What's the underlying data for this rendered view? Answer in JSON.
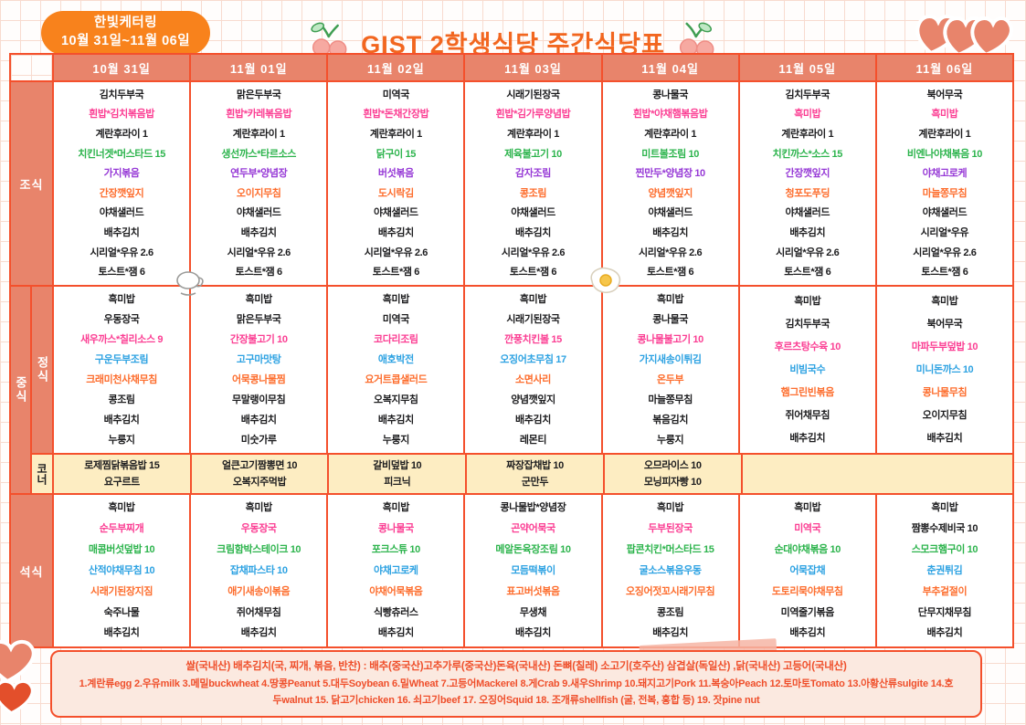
{
  "header": {
    "catering_name": "한빛케터링",
    "date_range": "10월 31일~11월 06일",
    "title": "GIST 2학생식당 주간식당표"
  },
  "days": [
    "10월 31일",
    "11월 01일",
    "11월 02일",
    "11월 03일",
    "11월 04일",
    "11월 05일",
    "11월 06일"
  ],
  "row_labels": {
    "breakfast": "조식",
    "lunch": "중식",
    "lunch_main": "정식",
    "corner": "코너",
    "dinner": "석식"
  },
  "colors": {
    "black": "#1d1d1f",
    "pink": "#fb3e93",
    "green": "#2db44d",
    "purple": "#9639d6",
    "orange": "#fd6d2d",
    "blue": "#2da2e2",
    "accent": "#f4502c",
    "salmon": "#e8846b",
    "corner_bg": "#fdedc2",
    "badge_bg": "#f8821c",
    "title_color": "#f2661f"
  },
  "menu": {
    "breakfast": [
      [
        {
          "t": "김치두부국",
          "c": "black"
        },
        {
          "t": "흰밥*김치볶음밥",
          "c": "pink"
        },
        {
          "t": "계란후라이 1",
          "c": "black"
        },
        {
          "t": "치킨너겟*머스타드 15",
          "c": "green"
        },
        {
          "t": "가지볶음",
          "c": "purple"
        },
        {
          "t": "간장깻잎지",
          "c": "orange"
        },
        {
          "t": "야채샐러드",
          "c": "black"
        },
        {
          "t": "배추김치",
          "c": "black"
        },
        {
          "t": "시리얼*우유 2.6",
          "c": "black"
        },
        {
          "t": "토스트*잼 6",
          "c": "black"
        }
      ],
      [
        {
          "t": "맑은두부국",
          "c": "black"
        },
        {
          "t": "흰밥*카레볶음밥",
          "c": "pink"
        },
        {
          "t": "계란후라이 1",
          "c": "black"
        },
        {
          "t": "생선까스*타르소스",
          "c": "green"
        },
        {
          "t": "연두부*양념장",
          "c": "purple"
        },
        {
          "t": "오이지무침",
          "c": "orange"
        },
        {
          "t": "야채샐러드",
          "c": "black"
        },
        {
          "t": "배추김치",
          "c": "black"
        },
        {
          "t": "시리얼*우유 2.6",
          "c": "black"
        },
        {
          "t": "토스트*잼 6",
          "c": "black"
        }
      ],
      [
        {
          "t": "미역국",
          "c": "black"
        },
        {
          "t": "흰밥*돈채간장밥",
          "c": "pink"
        },
        {
          "t": "계란후라이 1",
          "c": "black"
        },
        {
          "t": "닭구이 15",
          "c": "green"
        },
        {
          "t": "버섯볶음",
          "c": "purple"
        },
        {
          "t": "도시락김",
          "c": "orange"
        },
        {
          "t": "야채샐러드",
          "c": "black"
        },
        {
          "t": "배추김치",
          "c": "black"
        },
        {
          "t": "시리얼*우유 2.6",
          "c": "black"
        },
        {
          "t": "토스트*잼 6",
          "c": "black"
        }
      ],
      [
        {
          "t": "시래기된장국",
          "c": "black"
        },
        {
          "t": "흰밥*김가루양념밥",
          "c": "pink"
        },
        {
          "t": "계란후라이 1",
          "c": "black"
        },
        {
          "t": "제육불고기 10",
          "c": "green"
        },
        {
          "t": "감자조림",
          "c": "purple"
        },
        {
          "t": "콩조림",
          "c": "orange"
        },
        {
          "t": "야채샐러드",
          "c": "black"
        },
        {
          "t": "배추김치",
          "c": "black"
        },
        {
          "t": "시리얼*우유 2.6",
          "c": "black"
        },
        {
          "t": "토스트*잼 6",
          "c": "black"
        }
      ],
      [
        {
          "t": "콩나물국",
          "c": "black"
        },
        {
          "t": "흰밥*야채햄볶음밥",
          "c": "pink"
        },
        {
          "t": "계란후라이 1",
          "c": "black"
        },
        {
          "t": "미트볼조림 10",
          "c": "green"
        },
        {
          "t": "찐만두*양념장 10",
          "c": "purple"
        },
        {
          "t": "양념깻잎지",
          "c": "orange"
        },
        {
          "t": "야채샐러드",
          "c": "black"
        },
        {
          "t": "배추김치",
          "c": "black"
        },
        {
          "t": "시리얼*우유 2.6",
          "c": "black"
        },
        {
          "t": "토스트*잼 6",
          "c": "black"
        }
      ],
      [
        {
          "t": "김치두부국",
          "c": "black"
        },
        {
          "t": "흑미밥",
          "c": "pink"
        },
        {
          "t": "계란후라이 1",
          "c": "black"
        },
        {
          "t": "치킨까스*소스 15",
          "c": "green"
        },
        {
          "t": "간장깻잎지",
          "c": "purple"
        },
        {
          "t": "청포도푸딩",
          "c": "orange"
        },
        {
          "t": "야채샐러드",
          "c": "black"
        },
        {
          "t": "배추김치",
          "c": "black"
        },
        {
          "t": "시리얼*우유 2.6",
          "c": "black"
        },
        {
          "t": "토스트*잼 6",
          "c": "black"
        }
      ],
      [
        {
          "t": "북어무국",
          "c": "black"
        },
        {
          "t": "흑미밥",
          "c": "pink"
        },
        {
          "t": "계란후라이 1",
          "c": "black"
        },
        {
          "t": "비엔나야채볶음 10",
          "c": "green"
        },
        {
          "t": "야채고로케",
          "c": "purple"
        },
        {
          "t": "마늘쫑무침",
          "c": "orange"
        },
        {
          "t": "야채샐러드",
          "c": "black"
        },
        {
          "t": "시리얼*우유",
          "c": "black"
        },
        {
          "t": "시리얼*우유 2.6",
          "c": "black"
        },
        {
          "t": "토스트*잼 6",
          "c": "black"
        }
      ]
    ],
    "lunch": [
      [
        {
          "t": "흑미밥",
          "c": "black"
        },
        {
          "t": "우동장국",
          "c": "black"
        },
        {
          "t": "새우까스*칠리소스 9",
          "c": "pink"
        },
        {
          "t": "구운두부조림",
          "c": "blue"
        },
        {
          "t": "크래미천사채무침",
          "c": "orange"
        },
        {
          "t": "콩조림",
          "c": "black"
        },
        {
          "t": "배추김치",
          "c": "black"
        },
        {
          "t": "누룽지",
          "c": "black"
        }
      ],
      [
        {
          "t": "흑미밥",
          "c": "black"
        },
        {
          "t": "맑은두부국",
          "c": "black"
        },
        {
          "t": "간장불고기 10",
          "c": "pink"
        },
        {
          "t": "고구마맛탕",
          "c": "blue"
        },
        {
          "t": "어묵콩나물찜",
          "c": "orange"
        },
        {
          "t": "무말랭이무침",
          "c": "black"
        },
        {
          "t": "배추김치",
          "c": "black"
        },
        {
          "t": "미숫가루",
          "c": "black"
        }
      ],
      [
        {
          "t": "흑미밥",
          "c": "black"
        },
        {
          "t": "미역국",
          "c": "black"
        },
        {
          "t": "코다리조림",
          "c": "pink"
        },
        {
          "t": "애호박전",
          "c": "blue"
        },
        {
          "t": "요거트콥샐러드",
          "c": "orange"
        },
        {
          "t": "오복지무침",
          "c": "black"
        },
        {
          "t": "배추김치",
          "c": "black"
        },
        {
          "t": "누룽지",
          "c": "black"
        }
      ],
      [
        {
          "t": "흑미밥",
          "c": "black"
        },
        {
          "t": "시래기된장국",
          "c": "black"
        },
        {
          "t": "깐풍치킨볼 15",
          "c": "pink"
        },
        {
          "t": "오징어초무침 17",
          "c": "blue"
        },
        {
          "t": "소면사리",
          "c": "orange"
        },
        {
          "t": "양념깻잎지",
          "c": "black"
        },
        {
          "t": "배추김치",
          "c": "black"
        },
        {
          "t": "레몬티",
          "c": "black"
        }
      ],
      [
        {
          "t": "흑미밥",
          "c": "black"
        },
        {
          "t": "콩나물국",
          "c": "black"
        },
        {
          "t": "콩나물불고기 10",
          "c": "pink"
        },
        {
          "t": "가지새송이튀김",
          "c": "blue"
        },
        {
          "t": "온두부",
          "c": "orange"
        },
        {
          "t": "마늘쫑무침",
          "c": "black"
        },
        {
          "t": "볶음김치",
          "c": "black"
        },
        {
          "t": "누룽지",
          "c": "black"
        }
      ],
      [
        {
          "t": "흑미밥",
          "c": "black"
        },
        {
          "t": "김치두부국",
          "c": "black"
        },
        {
          "t": "후르츠탕수육 10",
          "c": "pink"
        },
        {
          "t": "비빔국수",
          "c": "blue"
        },
        {
          "t": "햄그린빈볶음",
          "c": "orange"
        },
        {
          "t": "쥐어채무침",
          "c": "black"
        },
        {
          "t": "배추김치",
          "c": "black"
        }
      ],
      [
        {
          "t": "흑미밥",
          "c": "black"
        },
        {
          "t": "북어무국",
          "c": "black"
        },
        {
          "t": "마파두부덮밥 10",
          "c": "pink"
        },
        {
          "t": "미니돈까스 10",
          "c": "blue"
        },
        {
          "t": "콩나물무침",
          "c": "orange"
        },
        {
          "t": "오이지무침",
          "c": "black"
        },
        {
          "t": "배추김치",
          "c": "black"
        }
      ]
    ],
    "corner": [
      [
        {
          "t": "로제찜닭볶음밥 15",
          "c": "black"
        },
        {
          "t": "요구르트",
          "c": "black"
        }
      ],
      [
        {
          "t": "얼큰고기짬뽕면 10",
          "c": "black"
        },
        {
          "t": "오복지주먹밥",
          "c": "black"
        }
      ],
      [
        {
          "t": "갈비덮밥 10",
          "c": "black"
        },
        {
          "t": "피크닉",
          "c": "black"
        }
      ],
      [
        {
          "t": "짜장잡채밥 10",
          "c": "black"
        },
        {
          "t": "군만두",
          "c": "black"
        }
      ],
      [
        {
          "t": "오므라이스 10",
          "c": "black"
        },
        {
          "t": "모닝피자빵 10",
          "c": "black"
        }
      ]
    ],
    "dinner": [
      [
        {
          "t": "흑미밥",
          "c": "black"
        },
        {
          "t": "순두부찌개",
          "c": "pink"
        },
        {
          "t": "매콤버섯덮밥 10",
          "c": "green"
        },
        {
          "t": "산적야채무침 10",
          "c": "blue"
        },
        {
          "t": "시래기된장지짐",
          "c": "orange"
        },
        {
          "t": "숙주나물",
          "c": "black"
        },
        {
          "t": "배추김치",
          "c": "black"
        }
      ],
      [
        {
          "t": "흑미밥",
          "c": "black"
        },
        {
          "t": "우동장국",
          "c": "pink"
        },
        {
          "t": "크림함박스테이크 10",
          "c": "green"
        },
        {
          "t": "잡채파스타 10",
          "c": "blue"
        },
        {
          "t": "애기새송이볶음",
          "c": "orange"
        },
        {
          "t": "쥐어채무침",
          "c": "black"
        },
        {
          "t": "배추김치",
          "c": "black"
        }
      ],
      [
        {
          "t": "흑미밥",
          "c": "black"
        },
        {
          "t": "콩나물국",
          "c": "pink"
        },
        {
          "t": "포크스튜 10",
          "c": "green"
        },
        {
          "t": "야채고로케",
          "c": "blue"
        },
        {
          "t": "야채어묵볶음",
          "c": "orange"
        },
        {
          "t": "식빵츄러스",
          "c": "black"
        },
        {
          "t": "배추김치",
          "c": "black"
        }
      ],
      [
        {
          "t": "콩나물밥*양념장",
          "c": "black"
        },
        {
          "t": "곤약어묵국",
          "c": "pink"
        },
        {
          "t": "메알돈육장조림 10",
          "c": "green"
        },
        {
          "t": "모듬떡볶이",
          "c": "blue"
        },
        {
          "t": "표고버섯볶음",
          "c": "orange"
        },
        {
          "t": "무생채",
          "c": "black"
        },
        {
          "t": "배추김치",
          "c": "black"
        }
      ],
      [
        {
          "t": "흑미밥",
          "c": "black"
        },
        {
          "t": "두부된장국",
          "c": "pink"
        },
        {
          "t": "팝콘치킨*머스타드 15",
          "c": "green"
        },
        {
          "t": "굴소스볶음우동",
          "c": "blue"
        },
        {
          "t": "오징어젓꼬시래기무침",
          "c": "orange"
        },
        {
          "t": "콩조림",
          "c": "black"
        },
        {
          "t": "배추김치",
          "c": "black"
        }
      ],
      [
        {
          "t": "흑미밥",
          "c": "black"
        },
        {
          "t": "미역국",
          "c": "pink"
        },
        {
          "t": "순대야채볶음 10",
          "c": "green"
        },
        {
          "t": "어묵잡채",
          "c": "blue"
        },
        {
          "t": "도토리묵야채무침",
          "c": "orange"
        },
        {
          "t": "미역줄기볶음",
          "c": "black"
        },
        {
          "t": "배추김치",
          "c": "black"
        }
      ],
      [
        {
          "t": "흑미밥",
          "c": "black"
        },
        {
          "t": "짬뽕수제비국 10",
          "c": "black"
        },
        {
          "t": "스모크햄구이 10",
          "c": "green"
        },
        {
          "t": "춘권튀김",
          "c": "blue"
        },
        {
          "t": "부추겉절이",
          "c": "orange"
        },
        {
          "t": "단무지채무침",
          "c": "black"
        },
        {
          "t": "배추김치",
          "c": "black"
        }
      ]
    ]
  },
  "footer": {
    "line1": "쌀(국내산) 배추김치(국, 찌개, 볶음, 반찬) : 배추(중국산)고추가루(중국산)돈육(국내산) 돈뼈(칠레) 소고기(호주산) 삼겹살(독일산) ,닭(국내산) 고등어(국내산)",
    "line2": "1.계란류egg 2.우유milk 3.메밀buckwheat 4.땅콩Peanut 5.대두Soybean 6.밀Wheat 7.고등어Mackerel 8.게Crab 9.새우Shrimp 10.돼지고기Pork 11.복숭아Peach 12.토마토Tomato 13.아황산류sulgite 14.호두walnut 15. 닭고기chicken 16. 쇠고기beef 17. 오징어Squid 18. 조개류shellfish (굴, 전복, 홍합 등) 19. 잣pine nut"
  }
}
